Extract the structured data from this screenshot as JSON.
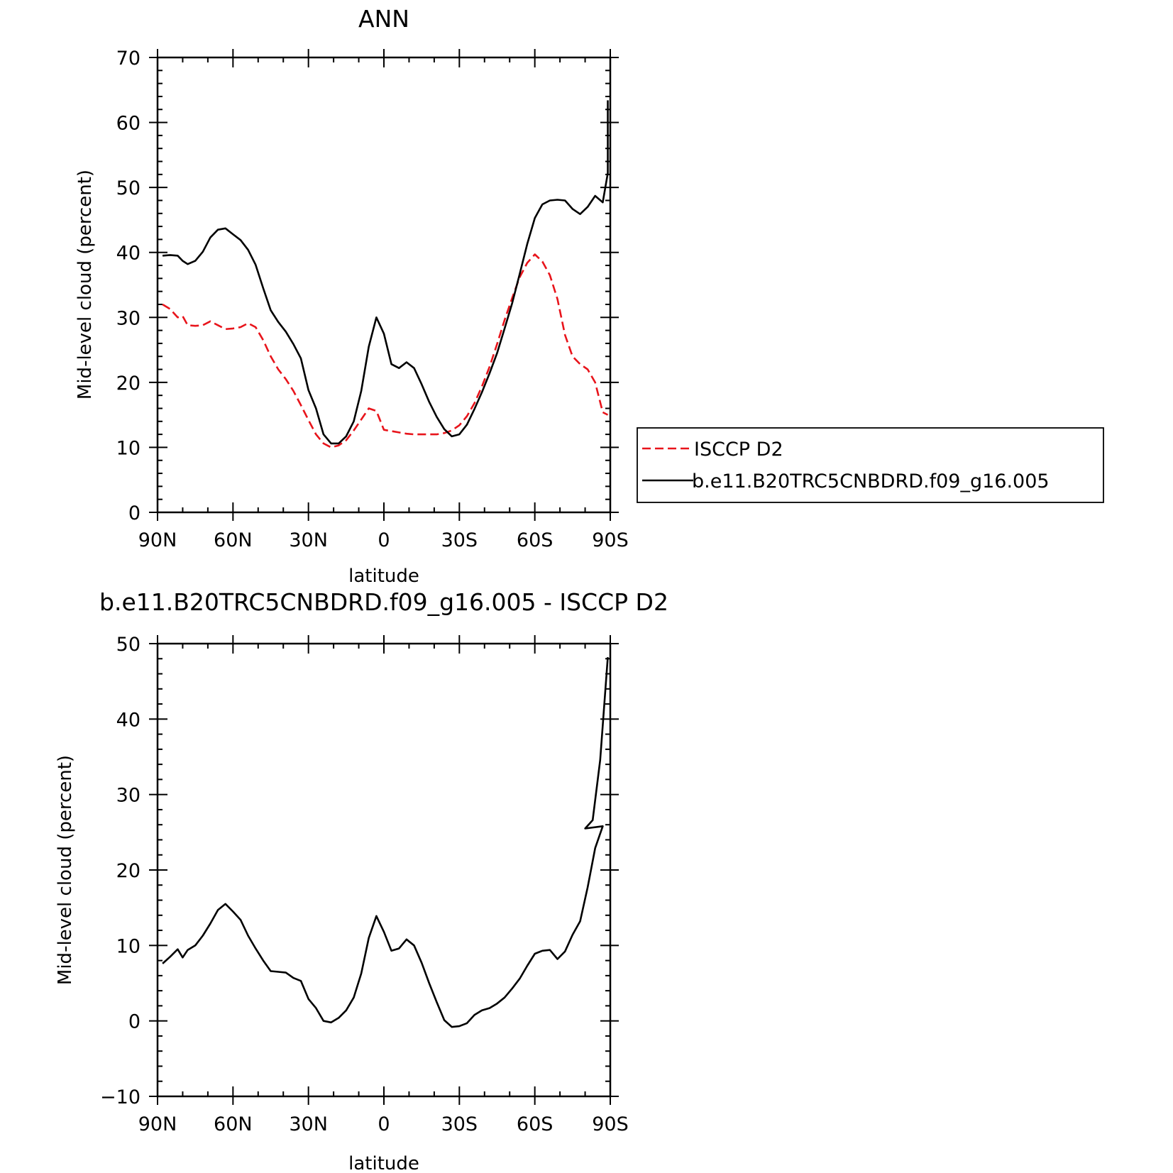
{
  "chart_data": [
    {
      "type": "line",
      "title": "ANN",
      "xlabel": "latitude",
      "ylabel": "Mid-level cloud (percent)",
      "xlim": [
        90,
        -90
      ],
      "ylim": [
        0,
        70
      ],
      "x_ticks": [
        90,
        60,
        30,
        0,
        -30,
        -60,
        -90
      ],
      "x_tick_labels": [
        "90N",
        "60N",
        "30N",
        "0",
        "30S",
        "60S",
        "90S"
      ],
      "y_ticks": [
        0,
        10,
        20,
        30,
        40,
        50,
        60,
        70
      ],
      "y_tick_labels": [
        "0",
        "10",
        "20",
        "30",
        "40",
        "50",
        "60",
        "70"
      ],
      "grid": false,
      "legend_placement": "right, outside plot",
      "series": [
        {
          "name": "ISCCP D2",
          "color": "#e8141b",
          "style": "dashed",
          "x": [
            88,
            85,
            82,
            80,
            78,
            75,
            72,
            69,
            66,
            63,
            60,
            57,
            54,
            51,
            48,
            45,
            42,
            39,
            36,
            33,
            30,
            27,
            24,
            21,
            18,
            15,
            12,
            9,
            6,
            3,
            0,
            -3,
            -6,
            -9,
            -12,
            -15,
            -18,
            -21,
            -24,
            -27,
            -30,
            -33,
            -36,
            -39,
            -42,
            -45,
            -48,
            -51,
            -54,
            -57,
            -60,
            -63,
            -66,
            -69,
            -72,
            -75,
            -78,
            -81,
            -84,
            -87
          ],
          "y": [
            32.0,
            31.3,
            30.0,
            30.2,
            28.8,
            28.7,
            28.8,
            29.4,
            28.8,
            28.2,
            28.3,
            28.5,
            29.1,
            28.5,
            26.5,
            24.0,
            22.0,
            20.5,
            18.7,
            16.5,
            14.2,
            12.0,
            10.6,
            10.0,
            10.3,
            11.1,
            12.6,
            14.3,
            16.0,
            15.6,
            12.7,
            12.5,
            12.3,
            12.1,
            12.0,
            12.0,
            12.0,
            12.0,
            12.2,
            12.6,
            13.4,
            14.8,
            16.8,
            19.4,
            22.4,
            25.9,
            29.6,
            33.0,
            36.2,
            38.4,
            39.7,
            38.6,
            36.5,
            32.8,
            27.3,
            24.0,
            22.8,
            22.0,
            20.0,
            15.4
          ]
        },
        {
          "name": "b.e11.B20TRC5CNBDRD.f09_g16.005",
          "color": "#000000",
          "style": "solid",
          "x": [
            88,
            85,
            82,
            80,
            78,
            75,
            72,
            69,
            66,
            63,
            60,
            57,
            54,
            51,
            48,
            45,
            42,
            39,
            36,
            33,
            30,
            27,
            24,
            21,
            18,
            15,
            12,
            9,
            6,
            3,
            0,
            -3,
            -6,
            -9,
            -12,
            -15,
            -18,
            -21,
            -24,
            -27,
            -30,
            -33,
            -36,
            -39,
            -42,
            -45,
            -48,
            -51,
            -54,
            -57,
            -60,
            -63,
            -66,
            -69,
            -72,
            -75,
            -78,
            -81,
            -84,
            -87
          ],
          "y": [
            39.5,
            39.6,
            39.5,
            38.7,
            38.2,
            38.7,
            40.1,
            42.3,
            43.5,
            43.7,
            42.8,
            41.9,
            40.4,
            38.1,
            34.5,
            31.1,
            29.3,
            27.8,
            25.9,
            23.7,
            18.8,
            16.0,
            12.0,
            10.6,
            10.6,
            11.7,
            14.0,
            18.7,
            25.5,
            30.0,
            27.5,
            22.8,
            22.2,
            23.1,
            22.2,
            19.7,
            17.0,
            14.7,
            12.8,
            11.7,
            12.0,
            13.5,
            15.9,
            18.5,
            21.4,
            24.5,
            28.3,
            32.2,
            36.7,
            41.3,
            45.3,
            47.4,
            48.0,
            48.1,
            48.0,
            46.7,
            45.9,
            47.0,
            48.7,
            47.7
          ]
        }
      ],
      "last_point_note": ""
    },
    {
      "type": "line",
      "title": "b.e11.B20TRC5CNBDRD.f09_g16.005 - ISCCP D2",
      "xlabel": "latitude",
      "ylabel": "Mid-level cloud (percent)",
      "xlim": [
        90,
        -90
      ],
      "ylim": [
        -10,
        50
      ],
      "x_ticks": [
        90,
        60,
        30,
        0,
        -30,
        -60,
        -90
      ],
      "x_tick_labels": [
        "90N",
        "60N",
        "30N",
        "0",
        "30S",
        "60S",
        "90S"
      ],
      "y_ticks": [
        -10,
        0,
        10,
        20,
        30,
        40,
        50
      ],
      "y_tick_labels": [
        "−10",
        "0",
        "10",
        "20",
        "30",
        "40",
        "50"
      ],
      "grid": false,
      "series": [
        {
          "color": "#000000",
          "style": "solid",
          "x": [
            88,
            85,
            82,
            80,
            78,
            75,
            72,
            69,
            66,
            63,
            60,
            57,
            54,
            51,
            48,
            45,
            42,
            39,
            36,
            33,
            30,
            27,
            24,
            21,
            18,
            15,
            12,
            9,
            6,
            3,
            0,
            -3,
            -6,
            -9,
            -12,
            -15,
            -18,
            -21,
            -24,
            -27,
            -30,
            -33,
            -36,
            -39,
            -42,
            -45,
            -48,
            -51,
            -54,
            -57,
            -60,
            -63,
            -66,
            -69,
            -72,
            -75,
            -78,
            -81,
            -84,
            -87
          ],
          "y": [
            7.6,
            8.5,
            9.5,
            8.4,
            9.4,
            10.0,
            11.3,
            12.9,
            14.7,
            15.5,
            14.5,
            13.4,
            11.3,
            9.6,
            8.0,
            6.6,
            6.5,
            6.4,
            5.7,
            5.3,
            2.9,
            1.7,
            0.0,
            -0.2,
            0.4,
            1.4,
            3.1,
            6.3,
            11.0,
            13.9,
            11.8,
            9.3,
            9.6,
            10.8,
            10.0,
            7.7,
            5.0,
            2.5,
            0.1,
            -0.8,
            -0.7,
            -0.3,
            0.8,
            1.4,
            1.7,
            2.3,
            3.1,
            4.3,
            5.6,
            7.3,
            8.9,
            9.3,
            9.4,
            8.2,
            9.2,
            11.4,
            13.2,
            17.7,
            22.9,
            25.8
          ]
        }
      ]
    }
  ],
  "extra_tail": {
    "top_black_x": [
      -89
    ],
    "top_black_y": [
      52.2
    ],
    "top_black_end_x": [
      -89
    ],
    "top_black_end_y": [
      63.4
    ],
    "bottom_tail_x": [
      -80,
      -83,
      -86,
      -89
    ],
    "bottom_tail_y": [
      25.5,
      26.6,
      34.6,
      48.2
    ]
  }
}
